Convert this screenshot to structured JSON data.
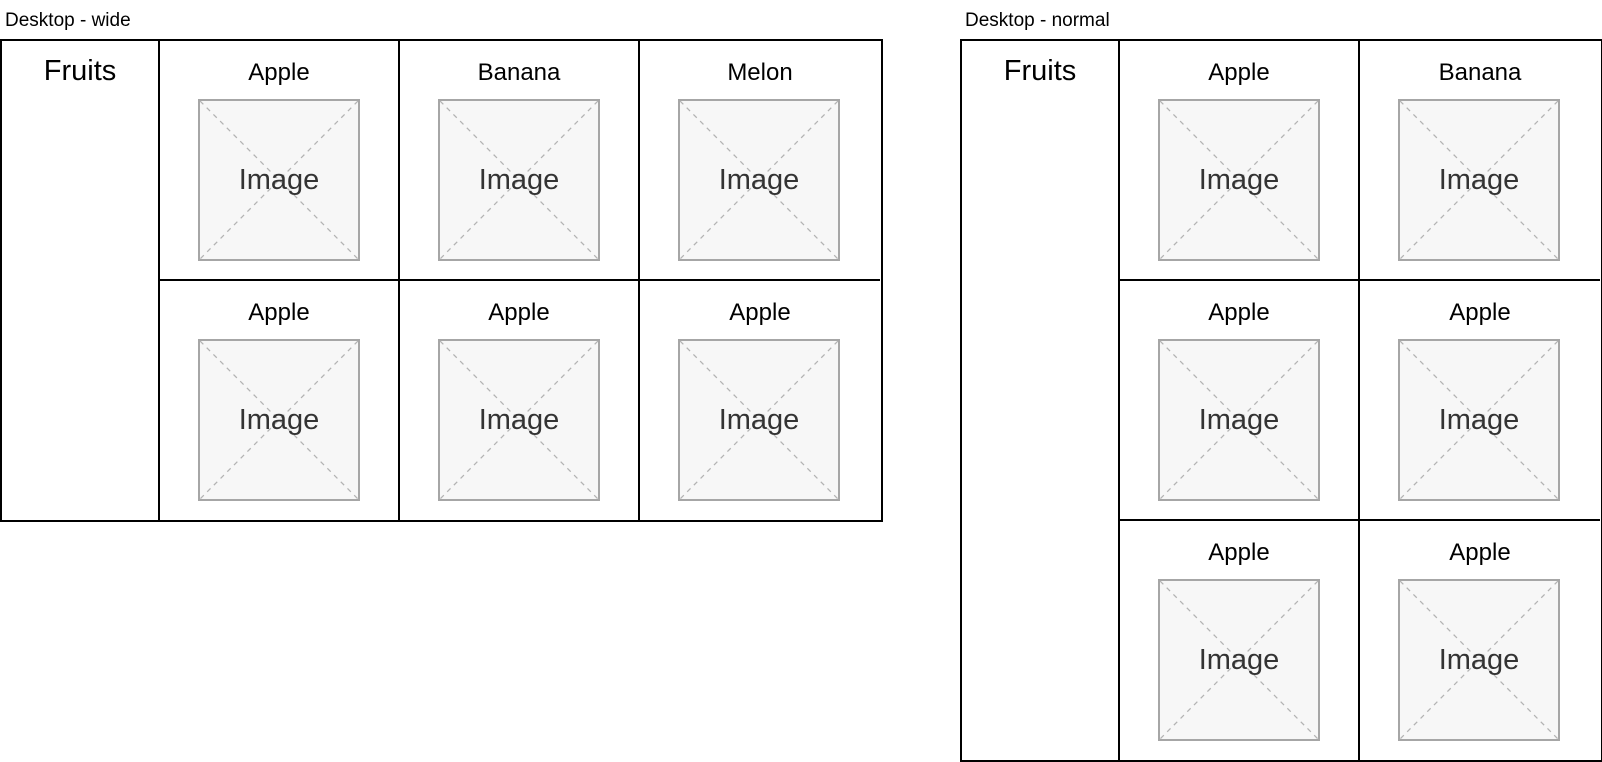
{
  "frames": [
    {
      "label": "Desktop - wide",
      "section_title": "Fruits",
      "columns": 3,
      "cards": [
        {
          "title": "Apple",
          "image_label": "Image"
        },
        {
          "title": "Banana",
          "image_label": "Image"
        },
        {
          "title": "Melon",
          "image_label": "Image"
        },
        {
          "title": "Apple",
          "image_label": "Image"
        },
        {
          "title": "Apple",
          "image_label": "Image"
        },
        {
          "title": "Apple",
          "image_label": "Image"
        }
      ]
    },
    {
      "label": "Desktop - normal",
      "section_title": "Fruits",
      "columns": 2,
      "cards": [
        {
          "title": "Apple",
          "image_label": "Image"
        },
        {
          "title": "Banana",
          "image_label": "Image"
        },
        {
          "title": "Apple",
          "image_label": "Image"
        },
        {
          "title": "Apple",
          "image_label": "Image"
        },
        {
          "title": "Apple",
          "image_label": "Image"
        },
        {
          "title": "Apple",
          "image_label": "Image"
        }
      ]
    }
  ],
  "colors": {
    "border": "#000000",
    "placeholder_border": "#a6a6a6",
    "placeholder_fill": "#f7f7f7",
    "placeholder_lines": "#b3b3b3",
    "placeholder_text": "#333333"
  }
}
